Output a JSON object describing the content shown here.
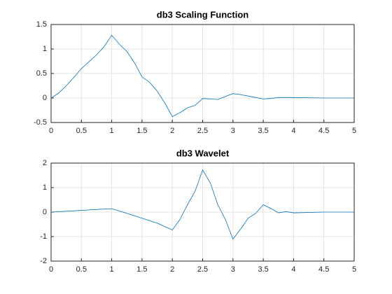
{
  "chart_data": [
    {
      "type": "line",
      "title": "db3 Scaling Function",
      "color": "#0072bd",
      "grid": true,
      "x": [
        0,
        0.125,
        0.25,
        0.375,
        0.5,
        0.625,
        0.75,
        0.875,
        1,
        1.125,
        1.25,
        1.375,
        1.5,
        1.625,
        1.75,
        1.875,
        2,
        2.125,
        2.25,
        2.375,
        2.5,
        2.625,
        2.75,
        2.875,
        3,
        3.125,
        3.25,
        3.375,
        3.5,
        3.625,
        3.75,
        4,
        4.5,
        5
      ],
      "values": [
        0,
        0.1,
        0.25,
        0.42,
        0.6,
        0.74,
        0.88,
        1.05,
        1.28,
        1.1,
        0.95,
        0.72,
        0.43,
        0.32,
        0.14,
        -0.1,
        -0.38,
        -0.3,
        -0.2,
        -0.15,
        -0.01,
        -0.02,
        -0.03,
        0.03,
        0.09,
        0.07,
        0.04,
        0.01,
        -0.02,
        -0.01,
        0.01,
        0.01,
        0,
        0
      ],
      "xlim": [
        0,
        5
      ],
      "xticks": [
        0,
        0.5,
        1,
        1.5,
        2,
        2.5,
        3,
        3.5,
        4,
        4.5,
        5
      ],
      "ylim": [
        -0.5,
        1.5
      ],
      "yticks": [
        -0.5,
        0,
        0.5,
        1,
        1.5
      ]
    },
    {
      "type": "line",
      "title": "db3 Wavelet",
      "color": "#0072bd",
      "grid": true,
      "x": [
        0,
        0.5,
        1,
        1.25,
        1.5,
        1.75,
        2,
        2.125,
        2.25,
        2.375,
        2.5,
        2.625,
        2.75,
        2.875,
        3,
        3.125,
        3.25,
        3.375,
        3.5,
        3.625,
        3.75,
        3.875,
        4,
        4.5,
        5
      ],
      "values": [
        0,
        0.07,
        0.14,
        -0.05,
        -0.25,
        -0.45,
        -0.73,
        -0.3,
        0.3,
        0.85,
        1.72,
        1.2,
        0.3,
        -0.3,
        -1.1,
        -0.7,
        -0.25,
        -0.05,
        0.3,
        0.15,
        -0.03,
        0.02,
        -0.03,
        0,
        0
      ],
      "xlim": [
        0,
        5
      ],
      "xticks": [
        0,
        0.5,
        1,
        1.5,
        2,
        2.5,
        3,
        3.5,
        4,
        4.5,
        5
      ],
      "ylim": [
        -2,
        2
      ],
      "yticks": [
        -2,
        -1,
        0,
        1,
        2
      ]
    }
  ]
}
